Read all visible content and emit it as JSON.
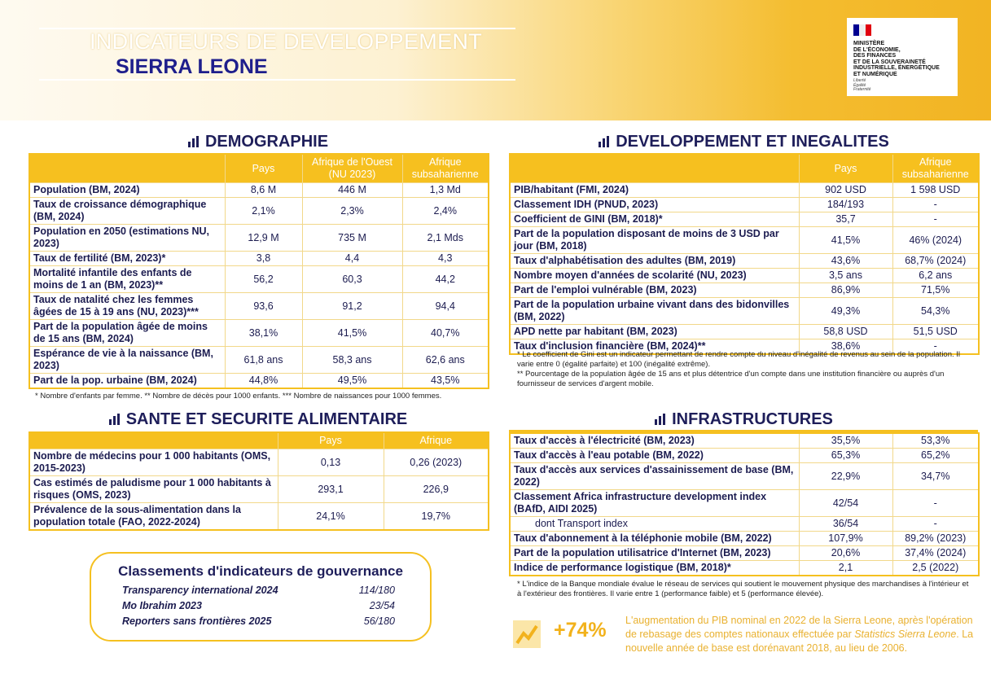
{
  "header": {
    "title": "INDICATEURS DE DEVELOPPEMENT",
    "country": "SIERRA LEONE",
    "logo": [
      "MINISTÈRE",
      "DE L'ÉCONOMIE,",
      "DES FINANCES",
      "ET DE LA SOUVERAINETÉ",
      "INDUSTRIELLE, ÉNERGÉTIQUE",
      "ET NUMÉRIQUE"
    ],
    "motto": [
      "Liberté",
      "Égalité",
      "Fraternité"
    ]
  },
  "demographie": {
    "title": "DEMOGRAPHIE",
    "columns": [
      "Pays",
      "Afrique de l'Ouest (NU 2023)",
      "Afrique subsaharienne"
    ],
    "rows": [
      [
        "Population (BM, 2024)",
        "8,6 M",
        "446 M",
        "1,3 Md"
      ],
      [
        "Taux de croissance démographique (BM, 2024)",
        "2,1%",
        "2,3%",
        "2,4%"
      ],
      [
        "Population en 2050 (estimations NU, 2023)",
        "12,9 M",
        "735 M",
        "2,1 Mds"
      ],
      [
        "Taux de fertilité (BM, 2023)*",
        "3,8",
        "4,4",
        "4,3"
      ],
      [
        "Mortalité infantile des enfants de moins de 1 an (BM, 2023)**",
        "56,2",
        "60,3",
        "44,2"
      ],
      [
        "Taux de natalité chez les femmes âgées de 15 à 19 ans (NU, 2023)***",
        "93,6",
        "91,2",
        "94,4"
      ],
      [
        "Part de la population âgée de moins de 15 ans (BM, 2024)",
        "38,1%",
        "41,5%",
        "40,7%"
      ],
      [
        "Espérance de vie à la naissance (BM, 2023)",
        "61,8 ans",
        "58,3 ans",
        "62,6 ans"
      ],
      [
        "Part de la pop. urbaine (BM, 2024)",
        "44,8%",
        "49,5%",
        "43,5%"
      ]
    ],
    "footnote": "* Nombre d'enfants par femme. ** Nombre de décès pour 1000 enfants. *** Nombre de naissances pour 1000 femmes."
  },
  "sante": {
    "title": "SANTE ET SECURITE ALIMENTAIRE",
    "columns": [
      "Pays",
      "Afrique"
    ],
    "rows": [
      [
        "Nombre de médecins pour 1 000 habitants (OMS, 2015-2023)",
        "0,13",
        "0,26 (2023)"
      ],
      [
        "Cas estimés de paludisme pour 1 000 habitants à risques (OMS, 2023)",
        "293,1",
        "226,9"
      ],
      [
        "Prévalence de la sous-alimentation dans la population totale (FAO, 2022-2024)",
        "24,1%",
        "19,7%"
      ]
    ]
  },
  "gouvernance": {
    "title": "Classements d'indicateurs de gouvernance",
    "rows": [
      [
        "Transparency international 2024",
        "114/180"
      ],
      [
        "Mo Ibrahim 2023",
        "23/54"
      ],
      [
        "Reporters sans frontières 2025",
        "56/180"
      ]
    ]
  },
  "developpement": {
    "title": "DEVELOPPEMENT ET INEGALITES",
    "columns": [
      "Pays",
      "Afrique subsaharienne"
    ],
    "rows": [
      [
        "PIB/habitant (FMI, 2024)",
        "902 USD",
        "1 598 USD"
      ],
      [
        "Classement IDH (PNUD, 2023)",
        "184/193",
        "-"
      ],
      [
        "Coefficient de GINI (BM, 2018)*",
        "35,7",
        "-"
      ],
      [
        "Part de la population disposant de moins de 3 USD par jour (BM, 2018)",
        "41,5%",
        "46% (2024)"
      ],
      [
        "Taux d'alphabétisation des adultes (BM, 2019)",
        "43,6%",
        "68,7% (2024)"
      ],
      [
        "Nombre moyen d'années de scolarité (NU, 2023)",
        "3,5 ans",
        "6,2 ans"
      ],
      [
        "Part de l'emploi vulnérable (BM, 2023)",
        "86,9%",
        "71,5%"
      ],
      [
        "Part de la population urbaine vivant dans des bidonvilles (BM, 2022)",
        "49,3%",
        "54,3%"
      ],
      [
        "APD nette par habitant (BM, 2023)",
        "58,8 USD",
        "51,5 USD"
      ],
      [
        "Taux d'inclusion financière (BM, 2024)**",
        "38,6%",
        "-"
      ]
    ],
    "footnote": [
      "* Le coefficient de Gini est un indicateur permettant de rendre compte du niveau d'inégalité de revenus au sein de la population. Il varie entre 0 (égalité parfaite) et 100 (inégalité extrême).",
      "** Pourcentage de la population âgée de 15 ans et plus détentrice d'un compte dans une institution financière ou auprès d'un fournisseur de services d'argent mobile."
    ]
  },
  "infrastructures": {
    "title": "INFRASTRUCTURES",
    "rows": [
      [
        "Taux d'accès à l'électricité (BM, 2023)",
        "35,5%",
        "53,3%"
      ],
      [
        "Taux d'accès à l'eau potable (BM, 2022)",
        "65,3%",
        "65,2%"
      ],
      [
        "Taux d'accès aux services d'assainissement de base (BM, 2022)",
        "22,9%",
        "34,7%"
      ],
      [
        "Classement Africa infrastructure development index (BAfD, AIDI 2025)",
        "42/54",
        "-"
      ],
      [
        "dont Transport index",
        "36/54",
        "-"
      ],
      [
        "Taux d'abonnement à la téléphonie mobile (BM, 2022)",
        "107,9%",
        "89,2% (2023)"
      ],
      [
        "Part de la population utilisatrice d'Internet (BM, 2023)",
        "20,6%",
        "37,4% (2024)"
      ],
      [
        "Indice de performance logistique (BM, 2018)*",
        "2,1",
        "2,5 (2022)"
      ]
    ],
    "footnote": "* L'indice de la Banque mondiale évalue le réseau de services qui soutient le mouvement physique des marchandises à l'intérieur et à l'extérieur des frontières. Il varie entre 1 (performance faible) et 5 (performance élevée)."
  },
  "highlight": {
    "value": "+74%",
    "text": [
      "L'augmentation du PIB nominal en 2022 de la Sierra Leone, après l'opération de rebasage des comptes nationaux effectuée par ",
      "Statistics Sierra Leone",
      ". La nouvelle année de base est dorénavant 2018, au lieu de 2006."
    ]
  }
}
